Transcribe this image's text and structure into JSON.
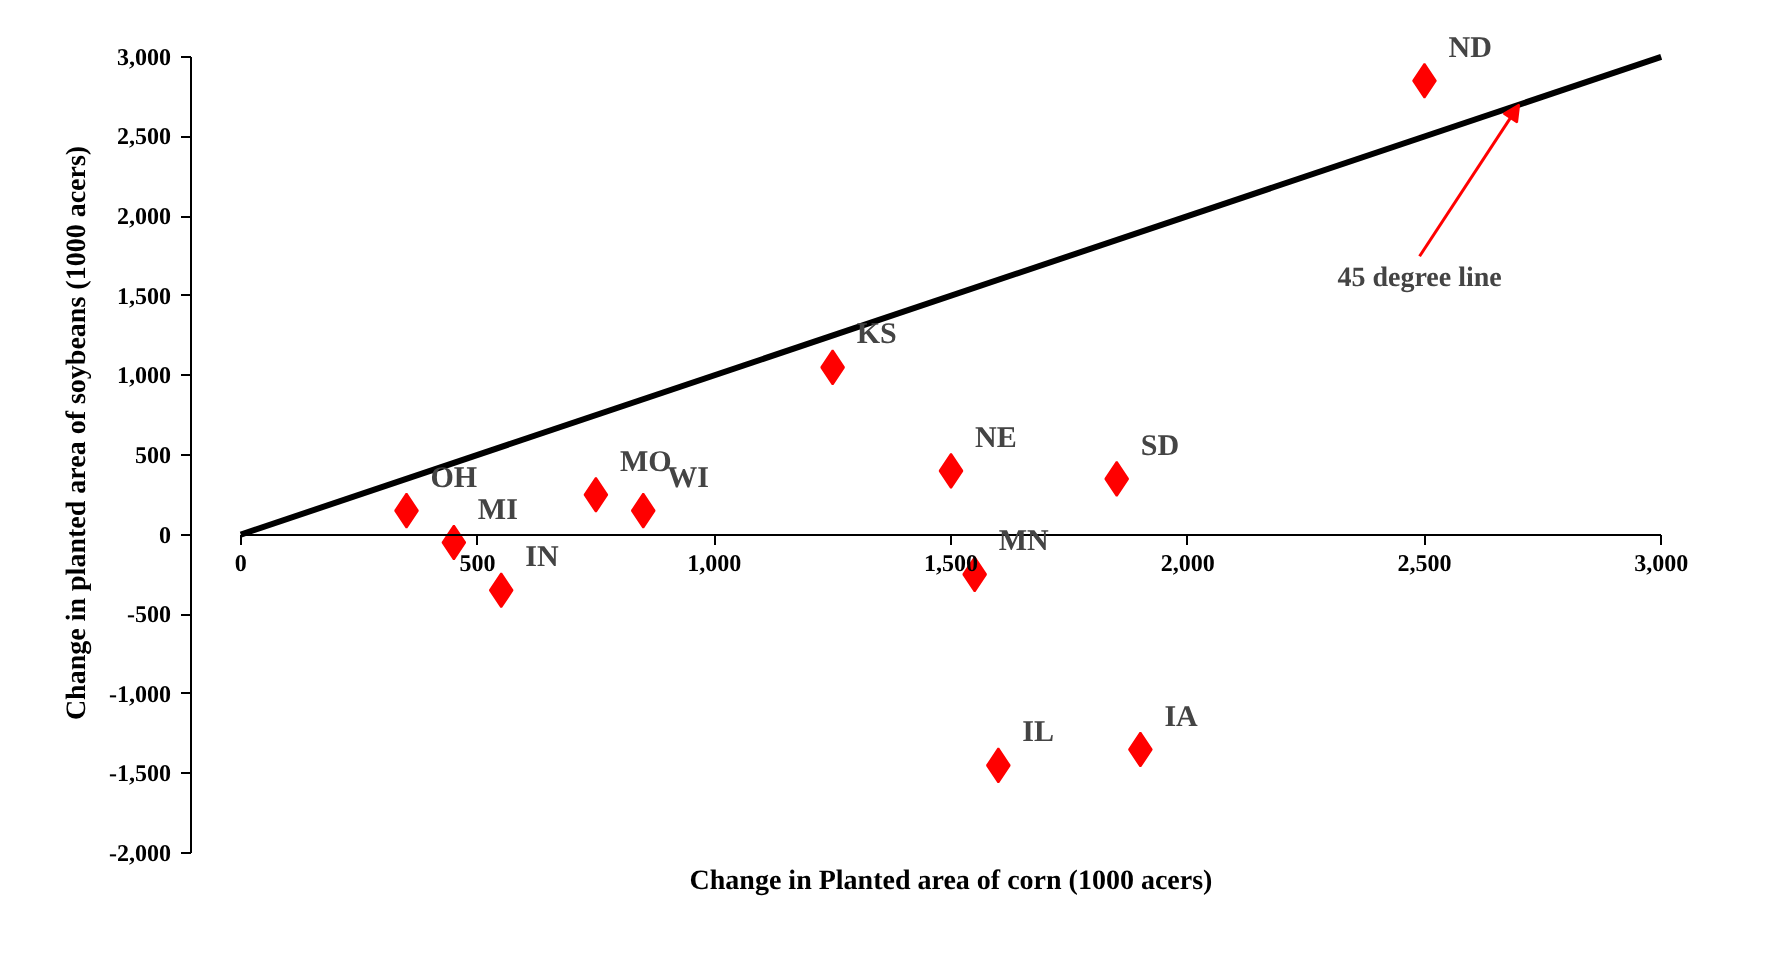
{
  "chart_data": {
    "type": "scatter",
    "xlabel": "Change in Planted area of corn (1000 acers)",
    "ylabel": "Change in planted area of soybeans (1000 acers)",
    "xlim": [
      0,
      3000
    ],
    "ylim": [
      -2000,
      3000
    ],
    "xticks": [
      0,
      500,
      {
        "value": 1000,
        "label": "1,000"
      },
      {
        "value": 1500,
        "label": "1,500"
      },
      {
        "value": 2000,
        "label": "2,000"
      },
      {
        "value": 2500,
        "label": "2,500"
      },
      {
        "value": 3000,
        "label": "3,000"
      }
    ],
    "yticks": [
      {
        "value": -2000,
        "label": "-2,000"
      },
      {
        "value": -1500,
        "label": "-1,500"
      },
      {
        "value": -1000,
        "label": "-1,000"
      },
      -500,
      0,
      500,
      {
        "value": 1000,
        "label": "1,000"
      },
      {
        "value": 1500,
        "label": "1,500"
      },
      {
        "value": 2000,
        "label": "2,000"
      },
      {
        "value": 2500,
        "label": "2,500"
      },
      {
        "value": 3000,
        "label": "3,000"
      }
    ],
    "grid": false,
    "marker": "diamond",
    "series": [
      {
        "color": "#ff0000",
        "x": [
          2500,
          1250,
          1500,
          1850,
          750,
          850,
          350,
          450,
          550,
          1550,
          1600,
          1900
        ],
        "values": [
          2850,
          1050,
          400,
          350,
          250,
          150,
          150,
          -50,
          -350,
          -250,
          -1450,
          -1350
        ]
      },
      {
        "type": "line",
        "marker": "none",
        "color": "#000000",
        "x": [
          0,
          3000
        ],
        "values": [
          0,
          3000
        ]
      }
    ],
    "annotations": [
      {
        "text": "ND",
        "x": 2500,
        "y": 2850
      },
      {
        "text": "KS",
        "x": 1250,
        "y": 1050
      },
      {
        "text": "NE",
        "x": 1500,
        "y": 400
      },
      {
        "text": "SD",
        "x": 1850,
        "y": 350
      },
      {
        "text": "MO",
        "x": 750,
        "y": 250
      },
      {
        "text": "WI",
        "x": 850,
        "y": 150
      },
      {
        "text": "OH",
        "x": 350,
        "y": 150
      },
      {
        "text": "MI",
        "x": 450,
        "y": -50
      },
      {
        "text": "IN",
        "x": 550,
        "y": -350
      },
      {
        "text": "MN",
        "x": 1550,
        "y": -250
      },
      {
        "text": "IL",
        "x": 1600,
        "y": -1450
      },
      {
        "text": "IA",
        "x": 1900,
        "y": -1350
      },
      {
        "text": "45 degree line",
        "x": 2700,
        "y": 2700
      }
    ]
  }
}
